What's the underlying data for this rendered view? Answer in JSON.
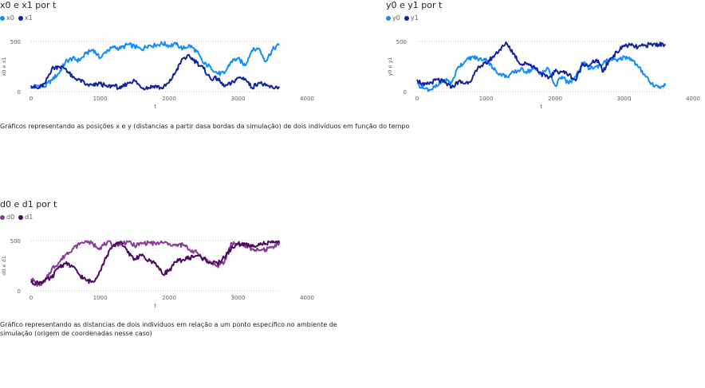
{
  "colors": {
    "x0": "#118DFF",
    "x1": "#12239E",
    "y0": "#118DFF",
    "y1": "#12239E",
    "d0": "#8A3A97",
    "d1": "#4E0A62",
    "gridline": "#c8c6c4",
    "axis_text": "#605e5c"
  },
  "captions": {
    "top": "Gráficos representando as posições x e y (distancias a partir dasa bordas da simulação) de dois indivíduos em função do tempo",
    "bottom": "Gráfico representando as distancias de dois indivíduos em relação a um ponto específico no ambiente de simulação (origem de coordenadas nesse caso)"
  },
  "chart_data": [
    {
      "id": "x",
      "type": "line",
      "title": "x0 e x1 por t",
      "xlabel": "t",
      "ylabel": "x0 e x1",
      "xlim": [
        0,
        4000
      ],
      "ylim": [
        0,
        500
      ],
      "xticks": [
        0,
        1000,
        2000,
        3000,
        4000
      ],
      "yticks": [
        0,
        500
      ],
      "grid": "horizontal dotted",
      "legend": "top-left",
      "x": [
        0,
        100,
        200,
        300,
        400,
        500,
        600,
        700,
        800,
        900,
        1000,
        1100,
        1200,
        1300,
        1400,
        1500,
        1600,
        1700,
        1800,
        1900,
        2000,
        2100,
        2200,
        2300,
        2400,
        2500,
        2600,
        2700,
        2800,
        2900,
        3000,
        3100,
        3200,
        3300,
        3400,
        3500,
        3600
      ],
      "series": [
        {
          "name": "x0",
          "color_key": "x0",
          "values": [
            30,
            60,
            50,
            120,
            180,
            300,
            330,
            310,
            380,
            420,
            330,
            410,
            440,
            430,
            470,
            450,
            420,
            460,
            460,
            480,
            460,
            470,
            430,
            460,
            400,
            280,
            250,
            180,
            180,
            300,
            330,
            260,
            410,
            430,
            300,
            420,
            470
          ]
        },
        {
          "name": "x1",
          "color_key": "x1",
          "values": [
            60,
            30,
            80,
            230,
            250,
            230,
            140,
            120,
            70,
            60,
            80,
            50,
            60,
            30,
            90,
            110,
            40,
            40,
            60,
            30,
            90,
            200,
            330,
            350,
            290,
            230,
            130,
            130,
            50,
            80,
            140,
            130,
            40,
            90,
            60,
            40,
            50
          ]
        }
      ]
    },
    {
      "id": "y",
      "type": "line",
      "title": "y0 e y1 por t",
      "xlabel": "t",
      "ylabel": "y0 e y1",
      "xlim": [
        0,
        4000
      ],
      "ylim": [
        0,
        500
      ],
      "xticks": [
        0,
        1000,
        2000,
        3000,
        4000
      ],
      "yticks": [
        0,
        500
      ],
      "grid": "horizontal dotted",
      "legend": "top-left",
      "x": [
        0,
        100,
        200,
        300,
        400,
        500,
        600,
        700,
        800,
        900,
        1000,
        1100,
        1200,
        1300,
        1400,
        1500,
        1600,
        1700,
        1800,
        1900,
        2000,
        2100,
        2200,
        2300,
        2400,
        2500,
        2600,
        2700,
        2800,
        2900,
        3000,
        3100,
        3200,
        3300,
        3400,
        3500,
        3600
      ],
      "series": [
        {
          "name": "y0",
          "color_key": "y0",
          "values": [
            80,
            30,
            20,
            60,
            120,
            90,
            250,
            300,
            350,
            320,
            330,
            230,
            180,
            150,
            190,
            220,
            200,
            230,
            180,
            230,
            60,
            150,
            80,
            150,
            290,
            230,
            250,
            280,
            330,
            300,
            350,
            330,
            250,
            170,
            80,
            40,
            60
          ]
        },
        {
          "name": "y1",
          "color_key": "y1",
          "values": [
            120,
            60,
            90,
            120,
            90,
            40,
            100,
            80,
            130,
            250,
            280,
            350,
            420,
            480,
            380,
            270,
            280,
            250,
            180,
            130,
            200,
            200,
            170,
            110,
            280,
            260,
            320,
            200,
            330,
            390,
            460,
            460,
            440,
            460,
            470,
            470,
            470
          ]
        }
      ]
    },
    {
      "id": "d",
      "type": "line",
      "title": "d0 e d1 por t",
      "xlabel": "t",
      "ylabel": "d0 e d1",
      "xlim": [
        0,
        4000
      ],
      "ylim": [
        0,
        500
      ],
      "xticks": [
        0,
        1000,
        2000,
        3000,
        4000
      ],
      "yticks": [
        0,
        500
      ],
      "grid": "horizontal dotted",
      "legend": "top-left",
      "x": [
        0,
        100,
        200,
        300,
        400,
        500,
        600,
        700,
        800,
        900,
        1000,
        1100,
        1200,
        1300,
        1400,
        1500,
        1600,
        1700,
        1800,
        1900,
        2000,
        2100,
        2200,
        2300,
        2400,
        2500,
        2600,
        2700,
        2800,
        2900,
        3000,
        3100,
        3200,
        3300,
        3400,
        3500,
        3600
      ],
      "series": [
        {
          "name": "d0",
          "color_key": "d0",
          "values": [
            120,
            60,
            90,
            220,
            280,
            360,
            420,
            460,
            500,
            460,
            430,
            480,
            460,
            470,
            490,
            450,
            470,
            480,
            470,
            480,
            470,
            450,
            460,
            410,
            380,
            330,
            280,
            250,
            280,
            480,
            460,
            450,
            420,
            400,
            410,
            440,
            480
          ]
        },
        {
          "name": "d1",
          "color_key": "d1",
          "values": [
            80,
            80,
            100,
            130,
            240,
            270,
            240,
            160,
            100,
            90,
            200,
            350,
            460,
            490,
            380,
            320,
            350,
            300,
            280,
            170,
            200,
            290,
            310,
            330,
            350,
            320,
            280,
            270,
            330,
            420,
            470,
            460,
            440,
            470,
            470,
            480,
            480
          ]
        }
      ]
    }
  ]
}
